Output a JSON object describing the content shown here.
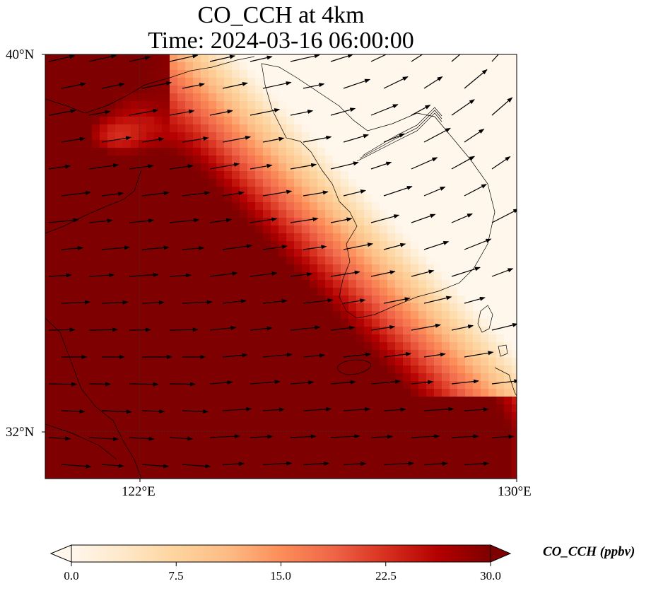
{
  "title": {
    "line1": "CO_CCH at 4km",
    "line2": "Time: 2024-03-16 06:00:00"
  },
  "axes": {
    "lon_range": [
      120.0,
      130.0
    ],
    "lat_range": [
      31.0,
      40.0
    ],
    "y_ticks": [
      {
        "value": 40,
        "label": "40°N"
      },
      {
        "value": 32,
        "label": "32°N"
      }
    ],
    "x_ticks": [
      {
        "value": 122,
        "label": "122°E"
      },
      {
        "value": 130,
        "label": "130°E"
      }
    ],
    "gridlines": "dotted at 122°E and 32°N"
  },
  "colorbar": {
    "label": "CO_CCH (ppbv)",
    "min": 0.0,
    "max": 30.0,
    "extend": "both",
    "colormap": "OrRd",
    "ticks": [
      "0.0",
      "7.5",
      "15.0",
      "22.5",
      "30.0"
    ],
    "stops": [
      "#fff7ec",
      "#fee8c8",
      "#fdd49e",
      "#fdbb84",
      "#fc8d59",
      "#ef6548",
      "#d7301f",
      "#b30000",
      "#7f0000"
    ]
  },
  "chart_data": {
    "type": "heatmap",
    "variable": "CO_CCH",
    "units": "ppbv",
    "level": "4km",
    "time": "2024-03-16 06:00:00",
    "ylim": [
      31.0,
      40.0
    ],
    "xlim": [
      120.0,
      130.0
    ],
    "vector_field": "wind arrows pointing mostly eastward to north-eastward",
    "pattern": "CO plume above 30 ppbv covering the Yellow Sea and East China Sea from the China coast south-eastward, values near 0 ppbv over the Korean Peninsula"
  }
}
